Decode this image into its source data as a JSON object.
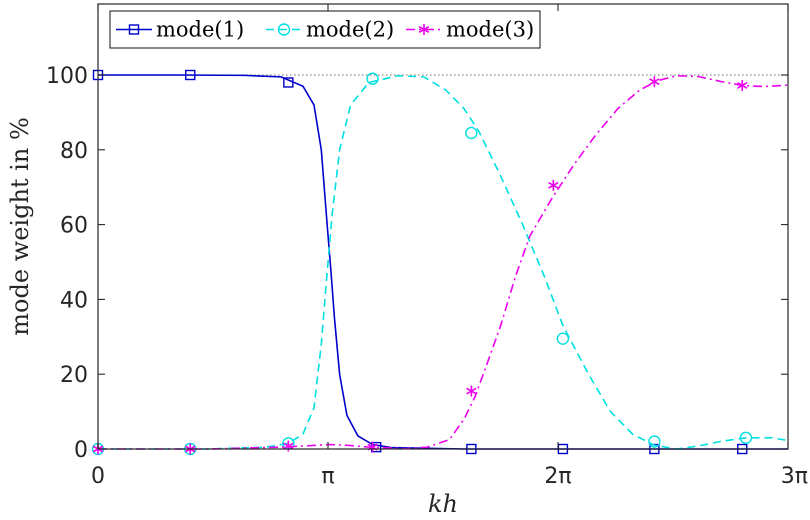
{
  "chart_data": {
    "type": "line",
    "xlabel": "kh",
    "ylabel": "mode weight in %",
    "xlim": [
      0,
      9.42478
    ],
    "ylim": [
      0,
      100
    ],
    "display_ylim": [
      0,
      100
    ],
    "xticks": [
      {
        "value": 0,
        "label": "0"
      },
      {
        "value": 3.14159,
        "label": "π"
      },
      {
        "value": 6.28319,
        "label": "2π"
      },
      {
        "value": 9.42478,
        "label": "3π"
      }
    ],
    "yticks": [
      0,
      20,
      40,
      60,
      80,
      100
    ],
    "reference_line": 100,
    "legend_position": "top-left",
    "grid": false,
    "series": [
      {
        "name": "mode(1)",
        "color": "#0000cc",
        "line_style": "solid",
        "marker": "square",
        "curve": [
          [
            0,
            100
          ],
          [
            1.0,
            100
          ],
          [
            2.0,
            99.9
          ],
          [
            2.5,
            99.5
          ],
          [
            2.8,
            97
          ],
          [
            2.95,
            92
          ],
          [
            3.05,
            80
          ],
          [
            3.13,
            60
          ],
          [
            3.18,
            48
          ],
          [
            3.23,
            35
          ],
          [
            3.3,
            20
          ],
          [
            3.4,
            9
          ],
          [
            3.55,
            3.5
          ],
          [
            3.75,
            1.2
          ],
          [
            4.0,
            0.4
          ],
          [
            5.0,
            0
          ],
          [
            9.42,
            0
          ]
        ],
        "markers": [
          [
            0,
            100
          ],
          [
            1.26,
            100
          ],
          [
            2.6,
            98
          ],
          [
            3.8,
            0.5
          ],
          [
            5.1,
            0
          ],
          [
            6.35,
            0
          ],
          [
            7.6,
            0
          ],
          [
            8.8,
            0
          ]
        ]
      },
      {
        "name": "mode(2)",
        "color": "#00e0e0",
        "line_style": "dashed",
        "marker": "circle",
        "curve": [
          [
            0,
            0
          ],
          [
            1.5,
            0
          ],
          [
            2.3,
            0.5
          ],
          [
            2.6,
            1.5
          ],
          [
            2.8,
            4
          ],
          [
            2.95,
            11
          ],
          [
            3.05,
            28
          ],
          [
            3.12,
            45
          ],
          [
            3.2,
            63
          ],
          [
            3.3,
            80
          ],
          [
            3.45,
            92
          ],
          [
            3.7,
            98
          ],
          [
            4.1,
            99.8
          ],
          [
            4.45,
            99.5
          ],
          [
            4.75,
            96
          ],
          [
            5.0,
            91
          ],
          [
            5.2,
            85
          ],
          [
            5.5,
            73
          ],
          [
            5.8,
            60
          ],
          [
            6.1,
            46
          ],
          [
            6.35,
            33
          ],
          [
            6.7,
            20
          ],
          [
            7.0,
            10
          ],
          [
            7.3,
            4
          ],
          [
            7.6,
            1
          ],
          [
            7.9,
            0
          ],
          [
            8.2,
            0.8
          ],
          [
            8.5,
            2
          ],
          [
            8.85,
            3
          ],
          [
            9.2,
            3
          ],
          [
            9.42,
            2.3
          ]
        ],
        "markers": [
          [
            0,
            0
          ],
          [
            1.26,
            0
          ],
          [
            2.6,
            1.5
          ],
          [
            3.75,
            99
          ],
          [
            5.1,
            84.5
          ],
          [
            6.35,
            29.5
          ],
          [
            7.6,
            2
          ],
          [
            8.85,
            3
          ]
        ]
      },
      {
        "name": "mode(3)",
        "color": "#ee00ee",
        "line_style": "dashdot",
        "marker": "asterisk",
        "curve": [
          [
            0,
            0
          ],
          [
            1.5,
            0
          ],
          [
            2.5,
            0.5
          ],
          [
            2.9,
            0.9
          ],
          [
            3.15,
            1.2
          ],
          [
            3.4,
            1.0
          ],
          [
            3.7,
            0.5
          ],
          [
            4.2,
            0.1
          ],
          [
            4.5,
            0.5
          ],
          [
            4.8,
            2.5
          ],
          [
            5.0,
            8
          ],
          [
            5.15,
            14
          ],
          [
            5.3,
            22
          ],
          [
            5.5,
            33
          ],
          [
            5.7,
            46
          ],
          [
            5.9,
            57
          ],
          [
            6.2,
            67
          ],
          [
            6.5,
            76
          ],
          [
            6.8,
            84
          ],
          [
            7.1,
            91
          ],
          [
            7.4,
            96
          ],
          [
            7.65,
            98.5
          ],
          [
            7.9,
            99.8
          ],
          [
            8.2,
            99.6
          ],
          [
            8.5,
            98.3
          ],
          [
            8.8,
            97.2
          ],
          [
            9.1,
            96.9
          ],
          [
            9.42,
            97.3
          ]
        ],
        "markers": [
          [
            0,
            0
          ],
          [
            1.26,
            0
          ],
          [
            2.6,
            0.8
          ],
          [
            3.75,
            0.5
          ],
          [
            5.1,
            15.5
          ],
          [
            6.22,
            70.5
          ],
          [
            7.6,
            98.2
          ],
          [
            8.8,
            97.2
          ]
        ]
      }
    ]
  }
}
